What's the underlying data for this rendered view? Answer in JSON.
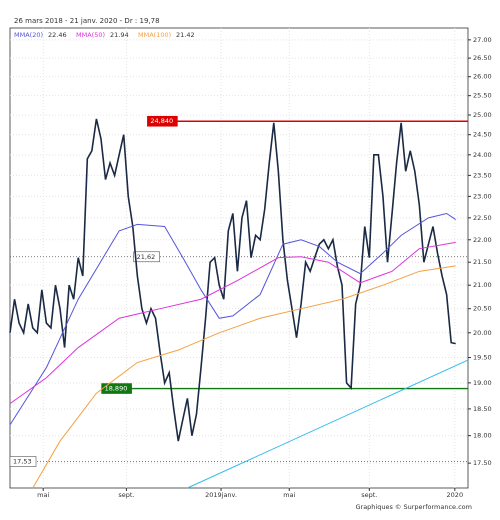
{
  "chart_data": {
    "type": "line",
    "title": "26 mars 2018 - 21 janv. 2020 - Dr : 19,78",
    "source": "Graphiques © Surperformance.com",
    "log": true,
    "grid": true,
    "xlim": [
      0,
      100.7
    ],
    "xticks": [
      {
        "value": 7.3,
        "label": "mai"
      },
      {
        "value": 25.6,
        "label": "sept."
      },
      {
        "value": 46.4,
        "label": "2019janv."
      },
      {
        "value": 61.4,
        "label": "mai"
      },
      {
        "value": 79,
        "label": "sept."
      },
      {
        "value": 97.8,
        "label": "2020"
      }
    ],
    "ylim": [
      17.06,
      27.33
    ],
    "yticks": [
      {
        "value": 17.5,
        "label": "17.50"
      },
      {
        "value": 18,
        "label": "18.00"
      },
      {
        "value": 18.5,
        "label": "18.50"
      },
      {
        "value": 19,
        "label": "19.00"
      },
      {
        "value": 19.5,
        "label": "19.50"
      },
      {
        "value": 20,
        "label": "20.00"
      },
      {
        "value": 20.5,
        "label": "20.50"
      },
      {
        "value": 21,
        "label": "21.00"
      },
      {
        "value": 21.5,
        "label": "21.50"
      },
      {
        "value": 22,
        "label": "22.00"
      },
      {
        "value": 22.5,
        "label": "22.50"
      },
      {
        "value": 23,
        "label": "23.00"
      },
      {
        "value": 23.5,
        "label": "23.50"
      },
      {
        "value": 24,
        "label": "24.00"
      },
      {
        "value": 24.5,
        "label": "24.50"
      },
      {
        "value": 25,
        "label": "25.00"
      },
      {
        "value": 25.5,
        "label": "25.50"
      },
      {
        "value": 26,
        "label": "26.00"
      },
      {
        "value": 26.5,
        "label": "26.50"
      },
      {
        "value": 27,
        "label": "27.00"
      }
    ],
    "series": [
      {
        "color": "#1a2a44",
        "values": [
          20.0,
          20.7,
          20.2,
          20.0,
          20.6,
          20.1,
          20.0,
          20.9,
          20.2,
          20.1,
          21.0,
          20.5,
          19.7,
          21.0,
          20.7,
          21.6,
          21.2,
          23.9,
          24.1,
          24.9,
          24.4,
          23.4,
          23.8,
          23.5,
          24.0,
          24.5,
          23.0,
          22.3,
          21.2,
          20.5,
          20.2,
          20.5,
          20.3,
          19.6,
          19.0,
          19.2,
          18.5,
          17.9,
          18.3,
          18.7,
          18.0,
          18.4,
          19.3,
          20.3,
          21.5,
          21.6,
          21.0,
          20.7,
          22.2,
          22.6,
          21.3,
          22.5,
          22.9,
          21.6,
          22.1,
          22.0,
          22.7,
          23.8,
          24.8,
          23.6,
          22.0,
          21.1,
          20.5,
          19.9,
          20.6,
          21.5,
          21.3,
          21.6,
          21.9,
          22.0,
          21.8,
          22.0,
          21.4,
          21.0,
          19.0,
          18.9,
          20.6,
          21.0,
          22.3,
          21.6,
          24.0,
          24.0,
          23.0,
          21.5,
          22.6,
          23.8,
          24.8,
          23.6,
          24.1,
          23.6,
          22.8,
          21.5,
          21.9,
          22.3,
          21.7,
          21.2,
          20.8,
          19.8,
          19.78
        ]
      },
      {
        "name": "MMA(20)",
        "last_value": "22.46",
        "color": "#5555dd",
        "x": [
          0,
          8,
          15,
          24,
          28,
          34,
          38,
          42,
          46,
          49,
          55,
          60,
          64,
          68,
          72,
          77,
          82,
          86,
          92,
          96,
          98
        ],
        "values": [
          18.2,
          19.3,
          20.7,
          22.2,
          22.35,
          22.3,
          21.6,
          20.9,
          20.3,
          20.35,
          20.8,
          21.9,
          22.0,
          21.85,
          21.5,
          21.25,
          21.7,
          22.1,
          22.5,
          22.6,
          22.46
        ]
      },
      {
        "name": "MMA(50)",
        "last_value": "21.94",
        "color": "#dd33dd",
        "x": [
          0,
          8,
          15,
          24,
          33,
          42,
          50,
          59,
          64,
          70,
          77,
          84,
          90,
          98
        ],
        "values": [
          18.6,
          19.1,
          19.7,
          20.3,
          20.5,
          20.7,
          21.1,
          21.6,
          21.62,
          21.5,
          21.05,
          21.3,
          21.8,
          21.94
        ]
      },
      {
        "name": "MMA(100)",
        "last_value": "21.42",
        "color": "#f5a040",
        "x": [
          5,
          11,
          19,
          28,
          37,
          46,
          55,
          64,
          73,
          82,
          90,
          98
        ],
        "values": [
          17.06,
          17.9,
          18.8,
          19.4,
          19.65,
          20.0,
          20.3,
          20.5,
          20.7,
          21.0,
          21.3,
          21.42
        ]
      },
      {
        "color": "#33bbee",
        "x": [
          39,
          100.7
        ],
        "values": [
          17.06,
          19.45
        ]
      }
    ],
    "levels": [
      {
        "value": 24.84,
        "label": "24,840",
        "color": "#dd0000"
      },
      {
        "value": 21.62,
        "label": "21,62",
        "color": "#555555"
      },
      {
        "value": 18.89,
        "label": "18,890",
        "color": "#117711"
      },
      {
        "value": 17.53,
        "label": "17,53",
        "color": "#555555"
      }
    ]
  }
}
